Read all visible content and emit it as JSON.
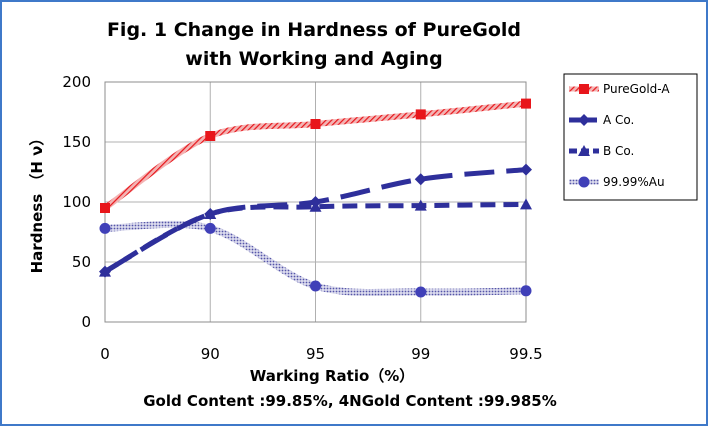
{
  "chart_data": {
    "type": "line",
    "title_line1": "Fig. 1 Change in Hardness of PureGold",
    "title_line2": "with Working and Aging",
    "xlabel": "Warking Ratio（%）",
    "ylabel": "Hardness （H ν）",
    "note": "Gold Content :99.85%, 4NGold Content :99.985%",
    "categories": [
      "0",
      "90",
      "95",
      "99",
      "99.5"
    ],
    "ylim": [
      0,
      200
    ],
    "yticks": [
      0,
      50,
      100,
      150,
      200
    ],
    "grid": "horizontal and vertical",
    "legend_position": "right",
    "series": [
      {
        "name": "PureGold-A",
        "values": [
          95,
          155,
          165,
          173,
          182
        ],
        "color": "#e8161b",
        "marker": "square",
        "style": "hatched"
      },
      {
        "name": "A Co.",
        "values": [
          42,
          90,
          100,
          119,
          127
        ],
        "color": "#2e2f9b",
        "marker": "diamond",
        "style": "long-dash"
      },
      {
        "name": "B Co.",
        "values": [
          42,
          90,
          96,
          97,
          98
        ],
        "color": "#2e2f9b",
        "marker": "triangle",
        "style": "dash"
      },
      {
        "name": "99.99%Au",
        "values": [
          78,
          78,
          30,
          25,
          26
        ],
        "color": "#4040b8",
        "marker": "circle",
        "style": "dotted"
      }
    ]
  }
}
